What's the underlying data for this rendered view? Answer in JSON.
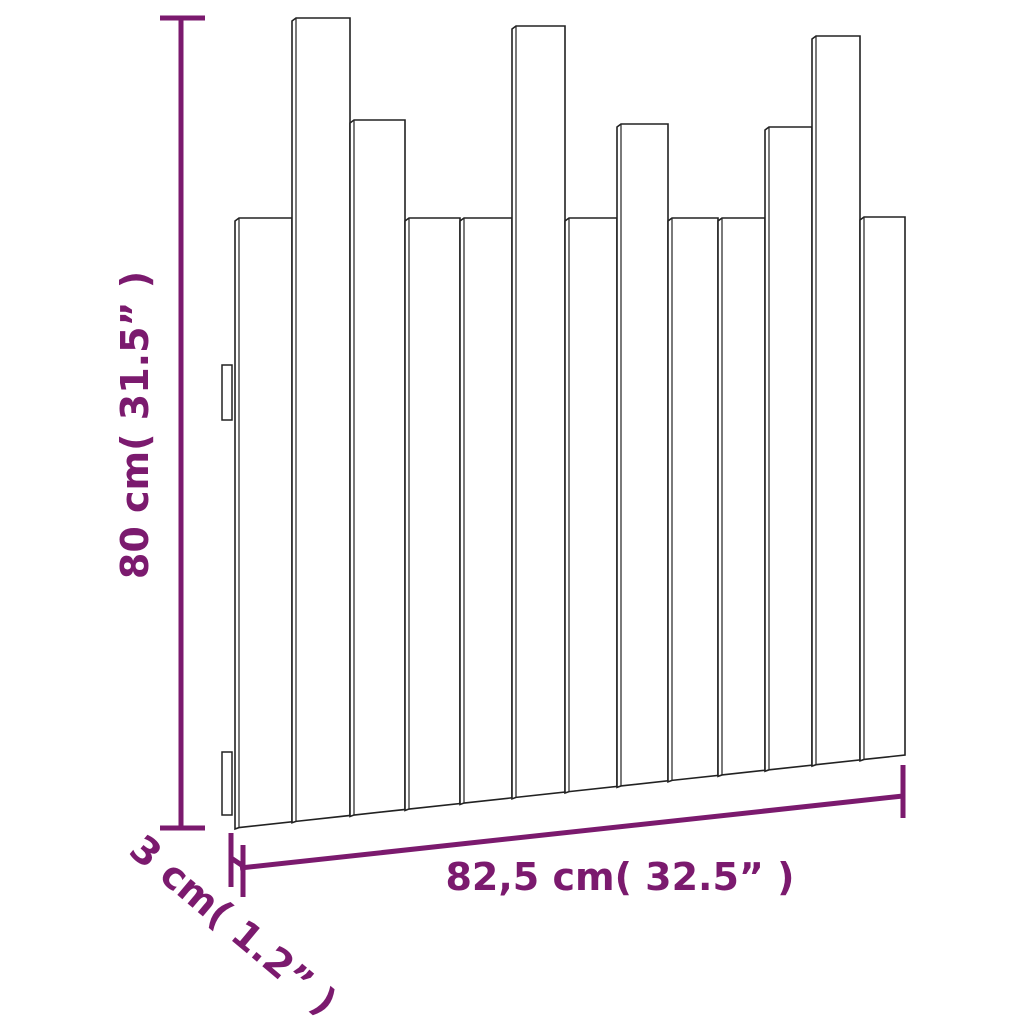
{
  "colors": {
    "dimension": "#7b1a6e",
    "outline": "#222222",
    "board_fill": "#ffffff"
  },
  "dimensions": {
    "height_label": "80 cm( 31.5” )",
    "width_label": "82,5 cm( 32.5” )",
    "depth_label": "3 cm( 1.2” )"
  },
  "product": {
    "board_count": 13
  }
}
